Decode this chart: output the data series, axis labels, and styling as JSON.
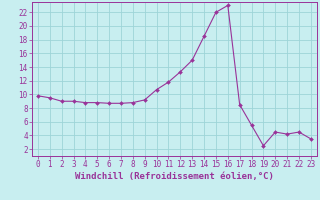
{
  "x": [
    0,
    1,
    2,
    3,
    4,
    5,
    6,
    7,
    8,
    9,
    10,
    11,
    12,
    13,
    14,
    15,
    16,
    17,
    18,
    19,
    20,
    21,
    22,
    23
  ],
  "y": [
    9.8,
    9.5,
    9.0,
    9.0,
    8.8,
    8.8,
    8.7,
    8.7,
    8.8,
    9.2,
    10.7,
    11.8,
    13.3,
    15.0,
    18.5,
    22.0,
    23.0,
    8.5,
    5.5,
    2.5,
    4.5,
    4.2,
    4.5,
    3.5
  ],
  "line_color": "#993399",
  "marker": "D",
  "marker_size": 2.0,
  "bg_color": "#c8eef0",
  "grid_color": "#9ed4d8",
  "xlabel": "Windchill (Refroidissement éolien,°C)",
  "ylabel": "",
  "title": "",
  "xlim": [
    -0.5,
    23.5
  ],
  "ylim": [
    1,
    23.5
  ],
  "yticks": [
    2,
    4,
    6,
    8,
    10,
    12,
    14,
    16,
    18,
    20,
    22
  ],
  "xticks": [
    0,
    1,
    2,
    3,
    4,
    5,
    6,
    7,
    8,
    9,
    10,
    11,
    12,
    13,
    14,
    15,
    16,
    17,
    18,
    19,
    20,
    21,
    22,
    23
  ],
  "tick_color": "#993399",
  "label_color": "#993399",
  "spine_color": "#993399",
  "tick_fontsize": 5.5,
  "xlabel_fontsize": 6.5
}
